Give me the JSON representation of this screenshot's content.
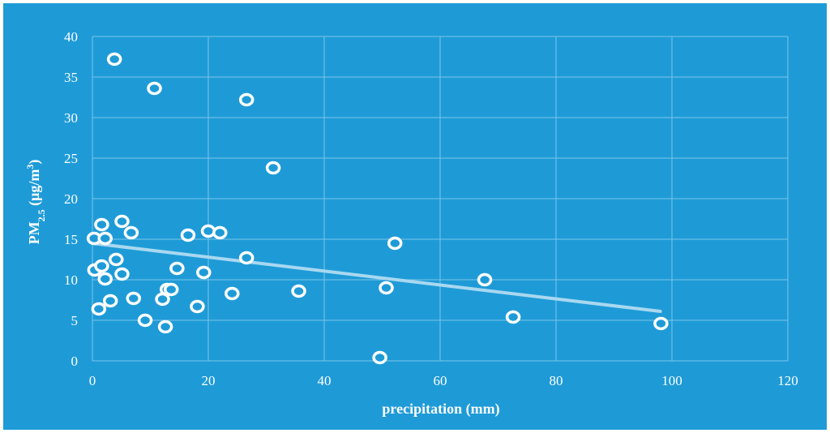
{
  "chart_data": {
    "type": "scatter",
    "xlabel": "precipitation (mm)",
    "ylabel": {
      "parts": [
        "PM",
        "2.5",
        " (μg/m",
        "3",
        ")"
      ]
    },
    "xlim": [
      0,
      120
    ],
    "ylim": [
      0,
      40
    ],
    "x_ticks": [
      0,
      20,
      40,
      60,
      80,
      100,
      120
    ],
    "y_ticks": [
      0,
      5,
      10,
      15,
      20,
      25,
      30,
      35,
      40
    ],
    "grid": true,
    "series": [
      {
        "points": [
          {
            "x": 3.8,
            "y": 37.2
          },
          {
            "x": 10.7,
            "y": 33.6
          },
          {
            "x": 26.6,
            "y": 32.2
          },
          {
            "x": 31.2,
            "y": 23.8
          },
          {
            "x": 0.3,
            "y": 15.1
          },
          {
            "x": 1.6,
            "y": 16.8
          },
          {
            "x": 2.2,
            "y": 15.1
          },
          {
            "x": 5.1,
            "y": 17.2
          },
          {
            "x": 6.7,
            "y": 15.8
          },
          {
            "x": 16.5,
            "y": 15.5
          },
          {
            "x": 20.0,
            "y": 16.0
          },
          {
            "x": 22.0,
            "y": 15.8
          },
          {
            "x": 52.2,
            "y": 14.5
          },
          {
            "x": 0.4,
            "y": 11.2
          },
          {
            "x": 1.6,
            "y": 11.7
          },
          {
            "x": 2.2,
            "y": 10.1
          },
          {
            "x": 4.1,
            "y": 12.5
          },
          {
            "x": 5.1,
            "y": 10.7
          },
          {
            "x": 14.6,
            "y": 11.4
          },
          {
            "x": 19.2,
            "y": 10.9
          },
          {
            "x": 26.6,
            "y": 12.7
          },
          {
            "x": 67.7,
            "y": 10.0
          },
          {
            "x": 1.1,
            "y": 6.4
          },
          {
            "x": 3.1,
            "y": 7.4
          },
          {
            "x": 7.1,
            "y": 7.7
          },
          {
            "x": 12.1,
            "y": 7.6
          },
          {
            "x": 12.9,
            "y": 8.8
          },
          {
            "x": 13.6,
            "y": 8.8
          },
          {
            "x": 18.1,
            "y": 6.7
          },
          {
            "x": 24.1,
            "y": 8.3
          },
          {
            "x": 35.6,
            "y": 8.6
          },
          {
            "x": 50.7,
            "y": 9.0
          },
          {
            "x": 9.1,
            "y": 5.0
          },
          {
            "x": 12.6,
            "y": 4.2
          },
          {
            "x": 72.6,
            "y": 5.4
          },
          {
            "x": 98.1,
            "y": 4.6
          },
          {
            "x": 49.6,
            "y": 0.4
          }
        ]
      }
    ],
    "trendline": {
      "x": [
        0,
        98
      ],
      "y": [
        14.5,
        6.1
      ]
    },
    "colors": {
      "background": "#1e9bd7",
      "grid": "#7cc6ea",
      "marker_stroke": "#ffffff",
      "trendline": "#a8d8f0"
    }
  }
}
